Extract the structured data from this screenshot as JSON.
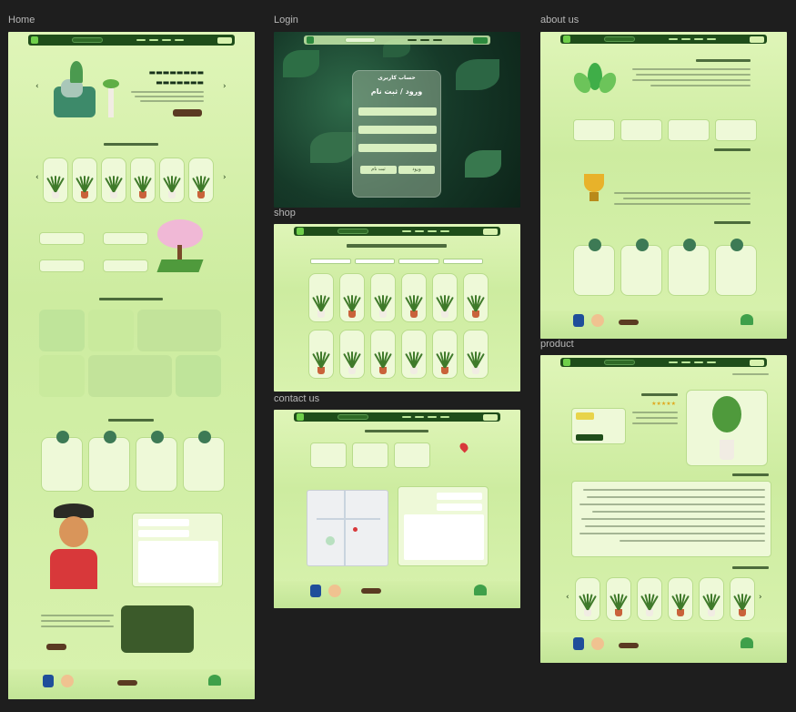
{
  "frames": {
    "home": {
      "label": "Home"
    },
    "login": {
      "label": "Login",
      "panel_title": "حساب کاربری",
      "panel_subtitle": "ورود / ثبت نام",
      "submit_label": "ورود",
      "secondary_label": "ثبت نام"
    },
    "shop": {
      "label": "shop"
    },
    "contact": {
      "label": "contact us"
    },
    "about": {
      "label": "about us"
    },
    "product": {
      "label": "product"
    }
  },
  "colors": {
    "canvas": "#1e1e1e",
    "page_green": "#d4efa8",
    "nav_dark": "#1f4d1a",
    "accent_brown": "#5a3a22",
    "pot_terracotta": "#c9623a"
  }
}
